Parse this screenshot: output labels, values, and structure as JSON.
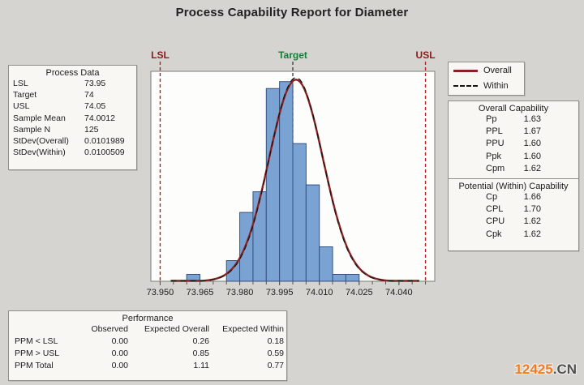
{
  "title": "Process Capability Report for Diameter",
  "colors": {
    "bar_fill": "#7aa3d4",
    "bar_stroke": "#34517e",
    "overall_curve": "#8b2222",
    "within_curve": "#141414",
    "spec_line": "#b22222",
    "spec_label": "#8b1a1a",
    "target_label": "#1a7a34",
    "axis": "#555553"
  },
  "process_data": {
    "title": "Process Data",
    "rows": [
      {
        "label": "LSL",
        "value": "73.95"
      },
      {
        "label": "Target",
        "value": "74"
      },
      {
        "label": "USL",
        "value": "74.05"
      },
      {
        "label": "Sample Mean",
        "value": "74.0012"
      },
      {
        "label": "Sample N",
        "value": "125"
      },
      {
        "label": "StDev(Overall)",
        "value": "0.0101989"
      },
      {
        "label": "StDev(Within)",
        "value": "0.0100509"
      }
    ]
  },
  "legend": {
    "items": [
      {
        "label": "Overall",
        "style": "solid",
        "color": "#8b2222"
      },
      {
        "label": "Within",
        "style": "dashed",
        "color": "#141414"
      }
    ]
  },
  "capability": {
    "sections": [
      {
        "title": "Overall Capability",
        "rows": [
          {
            "label": "Pp",
            "value": "1.63"
          },
          {
            "label": "PPL",
            "value": "1.67"
          },
          {
            "label": "PPU",
            "value": "1.60"
          },
          {
            "label": "Ppk",
            "value": "1.60"
          },
          {
            "label": "Cpm",
            "value": "1.62"
          }
        ]
      },
      {
        "title": "Potential (Within) Capability",
        "rows": [
          {
            "label": "Cp",
            "value": "1.66"
          },
          {
            "label": "CPL",
            "value": "1.70"
          },
          {
            "label": "CPU",
            "value": "1.62"
          },
          {
            "label": "Cpk",
            "value": "1.62"
          }
        ]
      }
    ]
  },
  "performance": {
    "title": "Performance",
    "columns": [
      "Observed",
      "Expected Overall",
      "Expected Within"
    ],
    "rows": [
      {
        "label": "PPM < LSL",
        "values": [
          "0.00",
          "0.26",
          "0.18"
        ]
      },
      {
        "label": "PPM > USL",
        "values": [
          "0.00",
          "0.85",
          "0.59"
        ]
      },
      {
        "label": "PPM Total",
        "values": [
          "0.00",
          "1.11",
          "0.77"
        ]
      }
    ]
  },
  "watermark": {
    "number": "12425",
    "suffix": ".CN"
  },
  "chart_data": {
    "type": "bar",
    "subtype": "capability-histogram",
    "title": "Process Capability Report for Diameter",
    "xlabel": "",
    "ylabel": "",
    "x_min": 73.9465,
    "x_max": 74.0535,
    "y_max_counts": 30.5,
    "bin_width": 0.005,
    "bins": [
      {
        "start": 73.96,
        "count": 1
      },
      {
        "start": 73.965,
        "count": 0
      },
      {
        "start": 73.97,
        "count": 0
      },
      {
        "start": 73.975,
        "count": 3
      },
      {
        "start": 73.98,
        "count": 10
      },
      {
        "start": 73.985,
        "count": 13
      },
      {
        "start": 73.99,
        "count": 28
      },
      {
        "start": 73.995,
        "count": 29
      },
      {
        "start": 74.0,
        "count": 20
      },
      {
        "start": 74.005,
        "count": 14
      },
      {
        "start": 74.01,
        "count": 5
      },
      {
        "start": 74.015,
        "count": 1
      },
      {
        "start": 74.02,
        "count": 1
      }
    ],
    "x_tick_labels": [
      "73.950",
      "73.965",
      "73.980",
      "73.995",
      "74.010",
      "74.025",
      "74.040"
    ],
    "x_tick_values": [
      73.95,
      73.965,
      73.98,
      73.995,
      74.01,
      74.025,
      74.04
    ],
    "minor_tick_step": 0.005,
    "spec_limits": {
      "lsl": {
        "value": 73.95,
        "label": "LSL"
      },
      "target": {
        "value": 74,
        "label": "Target"
      },
      "usl": {
        "value": 74.05,
        "label": "USL"
      }
    },
    "curves": [
      {
        "name": "Overall",
        "mean": 74.0012,
        "stdev": 0.0101989,
        "peak_counts": 29.3,
        "style": "solid"
      },
      {
        "name": "Within",
        "mean": 74.0012,
        "stdev": 0.0100509,
        "peak_counts": 29.6,
        "style": "dashed"
      }
    ],
    "sample_n": 125,
    "grid": false,
    "legend_position": "right-top"
  }
}
